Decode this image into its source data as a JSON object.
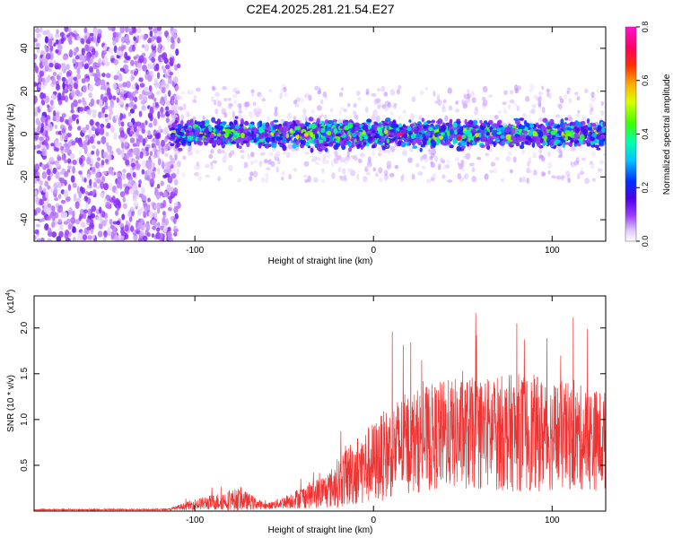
{
  "title": "C2E4.2025.281.21.54.E27",
  "chart_data": [
    {
      "type": "heatmap",
      "xlabel": "Height of straight line (km)",
      "ylabel": "Frequency (Hz)",
      "xlim": [
        -190,
        130
      ],
      "ylim": [
        -50,
        50
      ],
      "xticks": [
        -100,
        0,
        100
      ],
      "yticks": [
        -40,
        -20,
        0,
        20,
        40
      ],
      "colorbar": {
        "label": "Normalized spectral amplitude",
        "range": [
          0.0,
          0.8
        ],
        "ticks": [
          0.0,
          0.2,
          0.4,
          0.6,
          0.8
        ],
        "tick_labels": [
          "0.0",
          "0.2",
          "0.4",
          "0.6",
          "0.8"
        ]
      },
      "regions": [
        {
          "name": "noise",
          "x": [
            -190,
            -113
          ],
          "frequency_spread": [
            -50,
            50
          ],
          "amplitude": [
            0.05,
            0.12
          ]
        },
        {
          "name": "signal-band",
          "x": [
            -113,
            130
          ],
          "frequency_center": 0,
          "frequency_halfwidth": 8,
          "amplitude": [
            0.1,
            0.8
          ]
        }
      ],
      "peaks": [
        {
          "x": 15,
          "frequency": 0,
          "amplitude": 0.75
        },
        {
          "x": 48,
          "frequency": -2,
          "amplitude": 0.7
        }
      ]
    },
    {
      "type": "line",
      "xlabel": "Height of straight line (km)",
      "ylabel": "SNR (10 * v/v)",
      "y_exponent": "(x10",
      "y_exponent_power": "4",
      "y_exponent_close": ")",
      "xlim": [
        -190,
        130
      ],
      "ylim": [
        0,
        23500
      ],
      "xticks": [
        -100,
        0,
        100
      ],
      "yticks": [
        5000,
        10000,
        15000,
        20000
      ],
      "ytick_labels": [
        "0.5",
        "1.0",
        "1.5",
        "2.0"
      ],
      "color": "#ee3333",
      "envelope": [
        {
          "x": -190,
          "base": 120,
          "spread": 120
        },
        {
          "x": -115,
          "base": 150,
          "spread": 150
        },
        {
          "x": -100,
          "base": 500,
          "spread": 1200
        },
        {
          "x": -75,
          "base": 800,
          "spread": 2500
        },
        {
          "x": -60,
          "base": 400,
          "spread": 600
        },
        {
          "x": -50,
          "base": 700,
          "spread": 1400
        },
        {
          "x": -25,
          "base": 1500,
          "spread": 4000
        },
        {
          "x": -15,
          "base": 2500,
          "spread": 7000
        },
        {
          "x": 0,
          "base": 3500,
          "spread": 9000
        },
        {
          "x": 15,
          "base": 5000,
          "spread": 11000
        },
        {
          "x": 40,
          "base": 6000,
          "spread": 12000
        },
        {
          "x": 85,
          "base": 6000,
          "spread": 13000
        },
        {
          "x": 130,
          "base": 5500,
          "spread": 11000
        }
      ]
    }
  ]
}
